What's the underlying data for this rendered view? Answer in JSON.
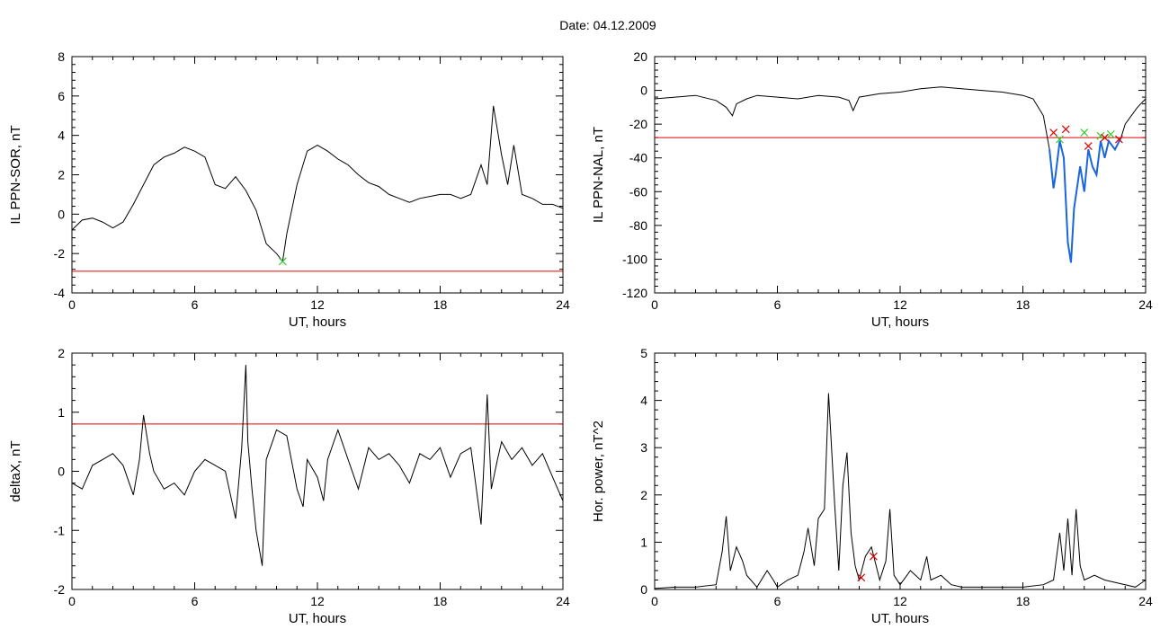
{
  "title": "Date:  04.12.2009",
  "colors": {
    "trace": "#000000",
    "threshold": "#dd0000",
    "marker_green": "#33cc33",
    "marker_red": "#dd0000",
    "highlight": "#1a66dd"
  },
  "chart_data": [
    {
      "type": "line",
      "id": "sor",
      "xlabel": "UT, hours",
      "ylabel": "IL PPN-SOR, nT",
      "xlim": [
        0,
        24
      ],
      "ylim": [
        -4,
        8
      ],
      "xticks": [
        0,
        6,
        12,
        18,
        24
      ],
      "yticks": [
        -4,
        -2,
        0,
        2,
        4,
        6,
        8
      ],
      "threshold": -2.9,
      "series": [
        {
          "x": [
            0,
            0.5,
            1,
            1.5,
            2,
            2.5,
            3,
            3.5,
            4,
            4.5,
            5,
            5.5,
            6,
            6.5,
            7,
            7.5,
            8,
            8.5,
            9,
            9.5,
            10,
            10.3,
            10.5,
            11,
            11.5,
            12,
            12.5,
            13,
            13.5,
            14,
            14.5,
            15,
            15.5,
            16,
            16.5,
            17,
            17.5,
            18,
            18.5,
            19,
            19.5,
            20,
            20.3,
            20.6,
            21,
            21.3,
            21.6,
            22,
            22.5,
            23,
            23.5,
            24
          ],
          "y": [
            -0.8,
            -0.3,
            -0.2,
            -0.4,
            -0.7,
            -0.4,
            0.5,
            1.5,
            2.5,
            2.9,
            3.1,
            3.4,
            3.2,
            2.9,
            1.5,
            1.3,
            1.9,
            1.2,
            0.2,
            -1.5,
            -2.0,
            -2.4,
            -1.0,
            1.5,
            3.2,
            3.5,
            3.2,
            2.8,
            2.5,
            2.0,
            1.6,
            1.4,
            1.0,
            0.8,
            0.6,
            0.8,
            0.9,
            1.0,
            1.0,
            0.8,
            1.0,
            2.5,
            1.5,
            5.5,
            3.0,
            1.5,
            3.5,
            1.0,
            0.8,
            0.5,
            0.5,
            0.3
          ]
        }
      ],
      "markers": [
        {
          "x": 10.3,
          "y": -2.4,
          "color": "green"
        }
      ]
    },
    {
      "type": "line",
      "id": "nal",
      "xlabel": "UT, hours",
      "ylabel": "IL PPN-NAL, nT",
      "xlim": [
        0,
        24
      ],
      "ylim": [
        -120,
        20
      ],
      "xticks": [
        0,
        6,
        12,
        18,
        24
      ],
      "yticks": [
        -120,
        -100,
        -80,
        -60,
        -40,
        -20,
        0,
        20
      ],
      "threshold": -28,
      "series": [
        {
          "x": [
            0,
            1,
            2,
            3,
            3.5,
            3.8,
            4,
            4.5,
            5,
            6,
            7,
            8,
            9,
            9.5,
            9.7,
            10,
            11,
            12,
            13,
            14,
            15,
            16,
            17,
            18,
            18.5,
            19,
            19.3,
            19.5,
            19.6,
            19.8,
            20,
            20.2,
            20.35,
            20.5,
            20.8,
            21,
            21.2,
            21.4,
            21.6,
            21.8,
            22,
            22.2,
            22.5,
            22.8,
            23,
            23.3,
            23.6,
            24
          ],
          "y": [
            -5,
            -4,
            -3,
            -6,
            -10,
            -15,
            -8,
            -5,
            -3,
            -4,
            -5,
            -3,
            -4,
            -6,
            -12,
            -4,
            -2,
            -1,
            1,
            2,
            1,
            0,
            -1,
            -3,
            -5,
            -15,
            -35,
            -58,
            -50,
            -30,
            -40,
            -90,
            -102,
            -70,
            -45,
            -60,
            -35,
            -45,
            -50,
            -30,
            -40,
            -30,
            -35,
            -28,
            -20,
            -15,
            -10,
            -5
          ]
        }
      ],
      "highlight_range": [
        19.3,
        22.9
      ],
      "markers": [
        {
          "x": 19.5,
          "y": -25,
          "color": "red"
        },
        {
          "x": 19.8,
          "y": -29,
          "color": "green"
        },
        {
          "x": 20.1,
          "y": -23,
          "color": "red"
        },
        {
          "x": 21.0,
          "y": -25,
          "color": "green"
        },
        {
          "x": 21.2,
          "y": -33,
          "color": "red"
        },
        {
          "x": 21.8,
          "y": -27,
          "color": "green"
        },
        {
          "x": 22.0,
          "y": -28,
          "color": "red"
        },
        {
          "x": 22.3,
          "y": -26,
          "color": "green"
        },
        {
          "x": 22.7,
          "y": -29,
          "color": "red"
        }
      ]
    },
    {
      "type": "line",
      "id": "deltax",
      "xlabel": "UT, hours",
      "ylabel": "deltaX, nT",
      "xlim": [
        0,
        24
      ],
      "ylim": [
        -2,
        2
      ],
      "xticks": [
        0,
        6,
        12,
        18,
        24
      ],
      "yticks": [
        -2,
        -1,
        0,
        1,
        2
      ],
      "threshold": 0.8,
      "series": [
        {
          "x": [
            0,
            0.5,
            1,
            1.5,
            2,
            2.5,
            3,
            3.3,
            3.5,
            3.8,
            4,
            4.5,
            5,
            5.5,
            6,
            6.5,
            7,
            7.5,
            8,
            8.3,
            8.5,
            8.6,
            8.8,
            9,
            9.3,
            9.5,
            9.8,
            10,
            10.5,
            11,
            11.3,
            11.5,
            12,
            12.3,
            12.5,
            13,
            13.5,
            14,
            14.5,
            15,
            15.5,
            16,
            16.5,
            17,
            17.5,
            18,
            18.5,
            19,
            19.5,
            20,
            20.3,
            20.5,
            20.8,
            21,
            21.5,
            22,
            22.5,
            23,
            23.5,
            24
          ],
          "y": [
            -0.2,
            -0.3,
            0.1,
            0.2,
            0.3,
            0.1,
            -0.4,
            0.2,
            0.95,
            0.3,
            0.0,
            -0.3,
            -0.2,
            -0.4,
            0.0,
            0.2,
            0.1,
            0.0,
            -0.8,
            0.4,
            1.8,
            0.5,
            -0.3,
            -1.0,
            -1.6,
            0.2,
            0.5,
            0.7,
            0.6,
            -0.3,
            -0.6,
            0.2,
            -0.1,
            -0.5,
            0.2,
            0.7,
            0.2,
            -0.3,
            0.4,
            0.2,
            0.3,
            0.1,
            -0.2,
            0.3,
            0.2,
            0.4,
            -0.1,
            0.3,
            0.4,
            -0.9,
            1.3,
            -0.3,
            0.2,
            0.5,
            0.2,
            0.4,
            0.1,
            0.3,
            -0.1,
            -0.5
          ]
        }
      ],
      "markers": []
    },
    {
      "type": "line",
      "id": "power",
      "xlabel": "UT, hours",
      "ylabel": "Hor. power, nT^2",
      "xlim": [
        0,
        24
      ],
      "ylim": [
        0,
        5
      ],
      "xticks": [
        0,
        6,
        12,
        18,
        24
      ],
      "yticks": [
        0,
        1,
        2,
        3,
        4,
        5
      ],
      "series": [
        {
          "x": [
            0,
            1,
            2,
            3,
            3.3,
            3.5,
            3.7,
            4,
            4.3,
            4.5,
            5,
            5.5,
            5.8,
            6,
            6.5,
            7,
            7.3,
            7.5,
            7.8,
            8,
            8.3,
            8.5,
            8.8,
            9,
            9.2,
            9.4,
            9.6,
            9.8,
            10,
            10.3,
            10.6,
            11,
            11.3,
            11.5,
            11.7,
            12,
            12.5,
            13,
            13.3,
            13.5,
            14,
            14.5,
            15,
            16,
            17,
            18,
            19,
            19.5,
            19.8,
            20,
            20.2,
            20.4,
            20.6,
            20.8,
            21,
            21.5,
            22,
            22.5,
            23,
            23.5,
            24
          ],
          "y": [
            0.02,
            0.05,
            0.05,
            0.1,
            0.8,
            1.55,
            0.4,
            0.9,
            0.6,
            0.3,
            0.05,
            0.4,
            0.2,
            0.05,
            0.2,
            0.3,
            0.8,
            1.3,
            0.5,
            1.5,
            1.7,
            4.15,
            1.8,
            0.4,
            2.2,
            2.9,
            1.2,
            0.5,
            0.2,
            0.7,
            0.9,
            0.2,
            0.6,
            1.7,
            0.3,
            0.1,
            0.4,
            0.2,
            0.7,
            0.2,
            0.3,
            0.1,
            0.05,
            0.05,
            0.05,
            0.05,
            0.1,
            0.2,
            1.2,
            0.4,
            1.5,
            0.3,
            1.7,
            0.5,
            0.2,
            0.3,
            0.2,
            0.15,
            0.1,
            0.05,
            0.2
          ]
        }
      ],
      "markers": [
        {
          "x": 10.1,
          "y": 0.25,
          "color": "red"
        },
        {
          "x": 10.7,
          "y": 0.7,
          "color": "red"
        }
      ]
    }
  ]
}
